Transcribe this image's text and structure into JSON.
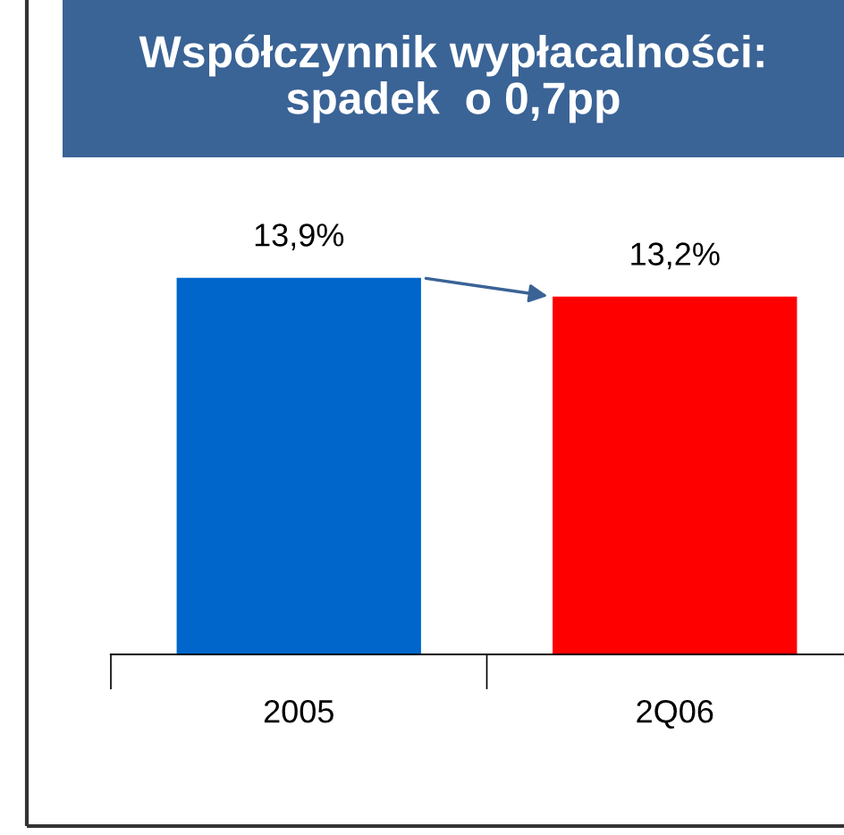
{
  "chart_data": {
    "type": "bar",
    "title": "Współczynnik wypłacalności:\nspadek  o 0,7pp",
    "categories": [
      "2005",
      "2Q06"
    ],
    "values": [
      13.9,
      13.2
    ],
    "colors": [
      "#0066cc",
      "#ff0000"
    ],
    "value_labels": [
      "13,9%",
      "13,2%"
    ]
  }
}
